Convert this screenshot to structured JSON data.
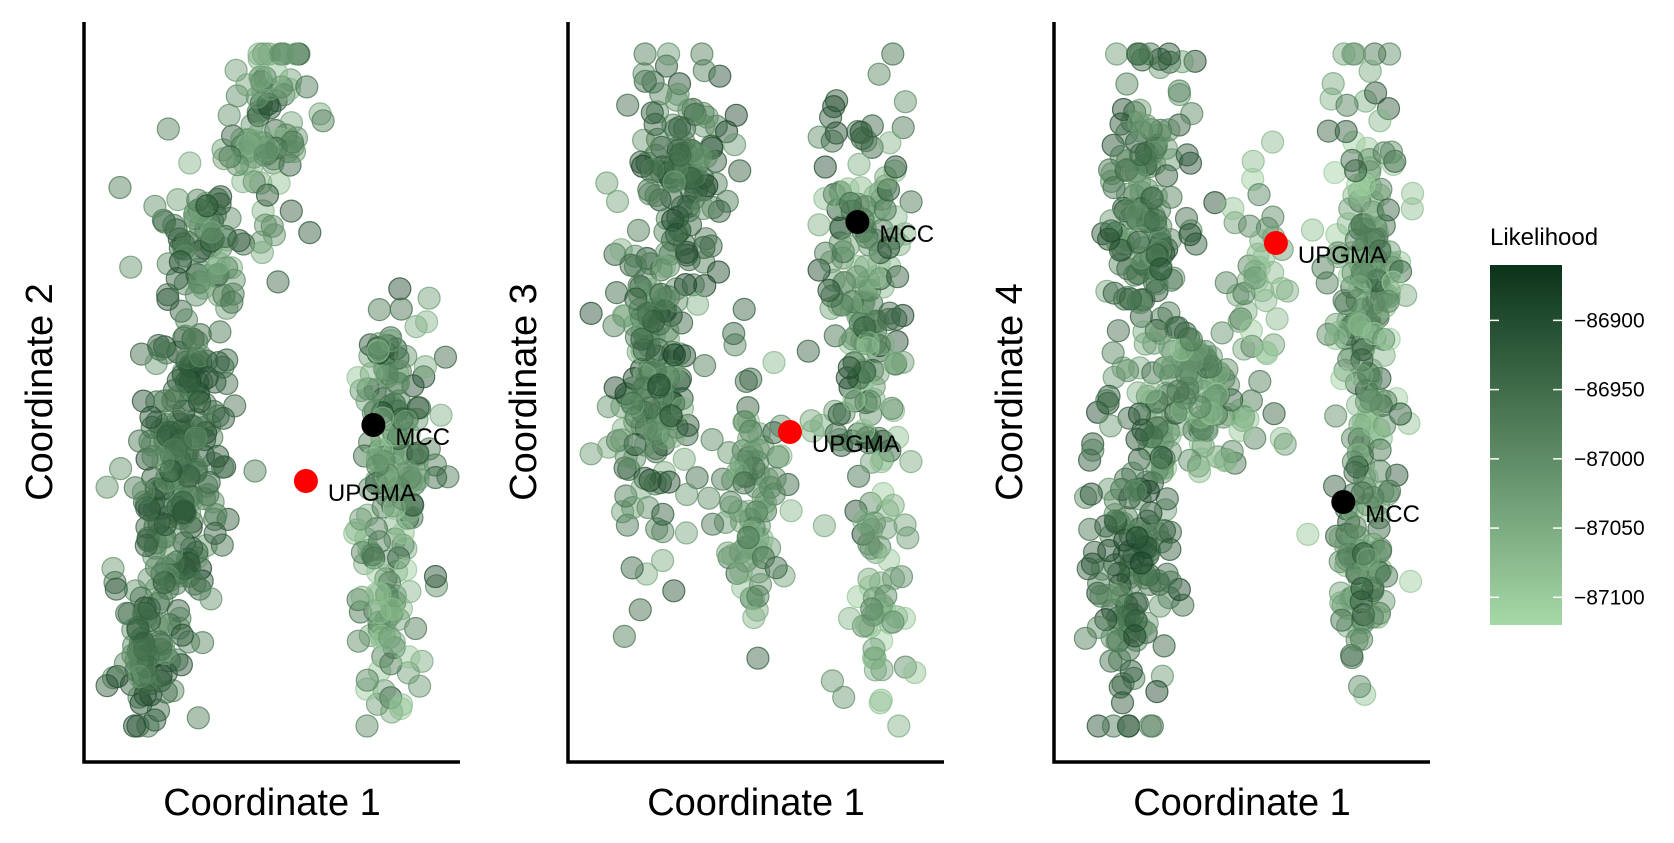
{
  "chart_data": [
    {
      "type": "scatter",
      "title": "",
      "xlabel": "Coordinate 1",
      "ylabel": "Coordinate 2",
      "xlim": [
        0,
        1
      ],
      "ylim": [
        0,
        1
      ],
      "point_color_scale": "Likelihood",
      "clusters": [
        {
          "cx": 0.47,
          "cy": 0.88,
          "sx": 0.06,
          "sy": 0.07,
          "n": 80,
          "vmin": -87080,
          "vmax": -86900
        },
        {
          "cx": 0.3,
          "cy": 0.72,
          "sx": 0.07,
          "sy": 0.06,
          "n": 70,
          "vmin": -87060,
          "vmax": -86900
        },
        {
          "cx": 0.24,
          "cy": 0.43,
          "sx": 0.06,
          "sy": 0.12,
          "n": 160,
          "vmin": -87020,
          "vmax": -86880
        },
        {
          "cx": 0.17,
          "cy": 0.27,
          "sx": 0.06,
          "sy": 0.09,
          "n": 90,
          "vmin": -87020,
          "vmax": -86890
        },
        {
          "cx": 0.12,
          "cy": 0.12,
          "sx": 0.04,
          "sy": 0.05,
          "n": 50,
          "vmin": -87020,
          "vmax": -86890
        },
        {
          "cx": 0.82,
          "cy": 0.41,
          "sx": 0.06,
          "sy": 0.12,
          "n": 150,
          "vmin": -87100,
          "vmax": -86890
        },
        {
          "cx": 0.8,
          "cy": 0.16,
          "sx": 0.04,
          "sy": 0.06,
          "n": 40,
          "vmin": -87100,
          "vmax": -86960
        }
      ],
      "highlights": [
        {
          "label": "MCC",
          "x": 0.77,
          "y": 0.45,
          "color": "#000000"
        },
        {
          "label": "UPGMA",
          "x": 0.58,
          "y": 0.37,
          "color": "#ff0000"
        }
      ]
    },
    {
      "type": "scatter",
      "title": "",
      "xlabel": "Coordinate 1",
      "ylabel": "Coordinate 3",
      "xlim": [
        0,
        1
      ],
      "ylim": [
        0,
        1
      ],
      "point_color_scale": "Likelihood",
      "clusters": [
        {
          "cx": 0.28,
          "cy": 0.81,
          "sx": 0.07,
          "sy": 0.08,
          "n": 120,
          "vmin": -87020,
          "vmax": -86880
        },
        {
          "cx": 0.19,
          "cy": 0.5,
          "sx": 0.06,
          "sy": 0.12,
          "n": 160,
          "vmin": -87060,
          "vmax": -86880
        },
        {
          "cx": 0.48,
          "cy": 0.34,
          "sx": 0.05,
          "sy": 0.1,
          "n": 90,
          "vmin": -87080,
          "vmax": -86920
        },
        {
          "cx": 0.79,
          "cy": 0.64,
          "sx": 0.06,
          "sy": 0.14,
          "n": 170,
          "vmin": -87090,
          "vmax": -86880
        },
        {
          "cx": 0.82,
          "cy": 0.2,
          "sx": 0.04,
          "sy": 0.1,
          "n": 55,
          "vmin": -87110,
          "vmax": -86980
        }
      ],
      "highlights": [
        {
          "label": "MCC",
          "x": 0.77,
          "y": 0.74,
          "color": "#000000"
        },
        {
          "label": "UPGMA",
          "x": 0.58,
          "y": 0.44,
          "color": "#ff0000"
        }
      ]
    },
    {
      "type": "scatter",
      "title": "",
      "xlabel": "Coordinate 1",
      "ylabel": "Coordinate 4",
      "xlim": [
        0,
        1
      ],
      "ylim": [
        0,
        1
      ],
      "point_color_scale": "Likelihood",
      "clusters": [
        {
          "cx": 0.22,
          "cy": 0.76,
          "sx": 0.06,
          "sy": 0.12,
          "n": 150,
          "vmin": -87040,
          "vmax": -86880
        },
        {
          "cx": 0.36,
          "cy": 0.48,
          "sx": 0.09,
          "sy": 0.07,
          "n": 130,
          "vmin": -87100,
          "vmax": -86920
        },
        {
          "cx": 0.17,
          "cy": 0.26,
          "sx": 0.06,
          "sy": 0.12,
          "n": 140,
          "vmin": -87020,
          "vmax": -86880
        },
        {
          "cx": 0.53,
          "cy": 0.68,
          "sx": 0.04,
          "sy": 0.06,
          "n": 35,
          "vmin": -87100,
          "vmax": -86960
        },
        {
          "cx": 0.84,
          "cy": 0.6,
          "sx": 0.05,
          "sy": 0.18,
          "n": 210,
          "vmin": -87110,
          "vmax": -86900
        },
        {
          "cx": 0.81,
          "cy": 0.23,
          "sx": 0.04,
          "sy": 0.07,
          "n": 60,
          "vmin": -87080,
          "vmax": -86900
        }
      ],
      "highlights": [
        {
          "label": "MCC",
          "x": 0.77,
          "y": 0.34,
          "color": "#000000"
        },
        {
          "label": "UPGMA",
          "x": 0.58,
          "y": 0.71,
          "color": "#ff0000"
        }
      ]
    }
  ],
  "legend": {
    "title": "Likelihood",
    "min": -87120,
    "max": -86860,
    "ticks": [
      -86900,
      -86950,
      -87000,
      -87050,
      -87100
    ],
    "tick_labels": [
      "−86900",
      "−86950",
      "−87000",
      "−87050",
      "−87100"
    ],
    "color_high": "#0b3319",
    "color_low": "#a6d8a7",
    "point_opacity": 0.45
  }
}
